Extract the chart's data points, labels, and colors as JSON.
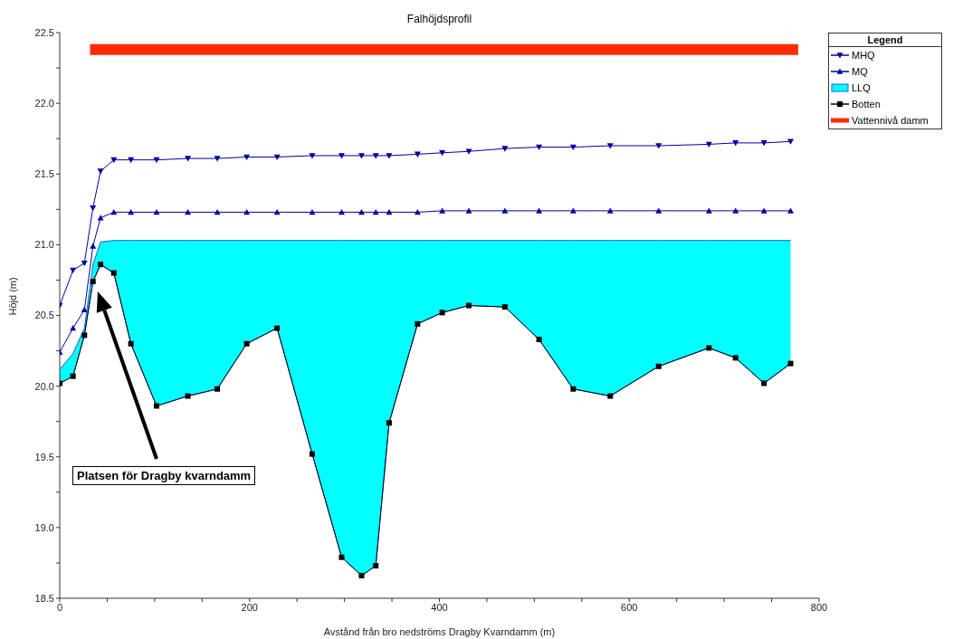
{
  "chart_data": {
    "type": "line",
    "title": "Falhöjdsprofil",
    "xlabel": "Avstånd från bro nedströms Dragby Kvarndamm (m)",
    "ylabel": "Höjd (m)",
    "legend_title": "Legend",
    "legend": "right",
    "grid": false,
    "x": [
      0,
      14,
      26,
      35,
      43,
      57,
      75,
      102,
      135,
      166,
      197,
      229,
      266,
      297,
      318,
      333,
      347,
      377,
      403,
      431,
      469,
      505,
      541,
      580,
      631,
      684,
      712,
      742,
      770
    ],
    "series": [
      {
        "name": "MHQ",
        "color": "#0000a0",
        "marker": "triangle-down",
        "values": [
          20.57,
          20.82,
          20.87,
          21.26,
          21.52,
          21.6,
          21.6,
          21.6,
          21.61,
          21.61,
          21.62,
          21.62,
          21.63,
          21.63,
          21.63,
          21.63,
          21.63,
          21.64,
          21.65,
          21.66,
          21.68,
          21.69,
          21.69,
          21.7,
          21.7,
          21.71,
          21.72,
          21.72,
          21.73
        ]
      },
      {
        "name": "MQ",
        "color": "#0000a0",
        "marker": "triangle",
        "values": [
          20.24,
          20.41,
          20.54,
          20.99,
          21.19,
          21.23,
          21.23,
          21.23,
          21.23,
          21.23,
          21.23,
          21.23,
          21.23,
          21.23,
          21.23,
          21.23,
          21.23,
          21.23,
          21.24,
          21.24,
          21.24,
          21.24,
          21.24,
          21.24,
          21.24,
          21.24,
          21.24,
          21.24,
          21.24
        ]
      },
      {
        "name": "LLQ",
        "type": "area",
        "color": "#00ffff",
        "marker": "none",
        "values": [
          20.12,
          20.23,
          20.41,
          20.86,
          21.02,
          21.03,
          21.03,
          21.03,
          21.03,
          21.03,
          21.03,
          21.03,
          21.03,
          21.03,
          21.03,
          21.03,
          21.03,
          21.03,
          21.03,
          21.03,
          21.03,
          21.03,
          21.03,
          21.03,
          21.03,
          21.03,
          21.03,
          21.03,
          21.03
        ]
      },
      {
        "name": "Botten",
        "color": "#000000",
        "marker": "square",
        "values": [
          20.02,
          20.07,
          20.36,
          20.74,
          20.86,
          20.8,
          20.3,
          19.86,
          19.93,
          19.98,
          20.3,
          20.41,
          19.52,
          18.79,
          18.66,
          18.73,
          19.74,
          20.44,
          20.52,
          20.57,
          20.56,
          20.33,
          19.98,
          19.93,
          20.14,
          20.27,
          20.2,
          20.02,
          20.16
        ]
      },
      {
        "name": "Vattennivå damm",
        "color": "#ff2a00",
        "marker": "none",
        "x": [
          32,
          778
        ],
        "values": [
          22.38,
          22.38
        ]
      }
    ],
    "xlim": [
      0,
      800
    ],
    "xticks": [
      0,
      {
        "value": 50,
        "label": null
      },
      {
        "value": 100,
        "label": null
      },
      {
        "value": 150,
        "label": null
      },
      200,
      {
        "value": 250,
        "label": null
      },
      {
        "value": 300,
        "label": null
      },
      {
        "value": 350,
        "label": null
      },
      400,
      {
        "value": 450,
        "label": null
      },
      {
        "value": 500,
        "label": null
      },
      {
        "value": 550,
        "label": null
      },
      600,
      {
        "value": 650,
        "label": null
      },
      {
        "value": 700,
        "label": null
      },
      {
        "value": 750,
        "label": null
      },
      800
    ],
    "ylim": [
      18.5,
      22.5
    ],
    "yticks": [
      {
        "value": 18.5,
        "label": "18.5"
      },
      {
        "value": 18.75,
        "label": null
      },
      {
        "value": 19,
        "label": "19.0"
      },
      {
        "value": 19.25,
        "label": null
      },
      {
        "value": 19.5,
        "label": "19.5"
      },
      {
        "value": 19.75,
        "label": null
      },
      {
        "value": 20,
        "label": "20.0"
      },
      {
        "value": 20.25,
        "label": null
      },
      {
        "value": 20.5,
        "label": "20.5"
      },
      {
        "value": 20.75,
        "label": null
      },
      {
        "value": 21,
        "label": "21.0"
      },
      {
        "value": 21.25,
        "label": null
      },
      {
        "value": 21.5,
        "label": "21.5"
      },
      {
        "value": 21.75,
        "label": null
      },
      {
        "value": 22,
        "label": "22.0"
      },
      {
        "value": 22.25,
        "label": null
      },
      {
        "value": 22.5,
        "label": "22.5"
      }
    ],
    "annotations": [
      "Platsen för Dragby kvarndamm"
    ]
  }
}
